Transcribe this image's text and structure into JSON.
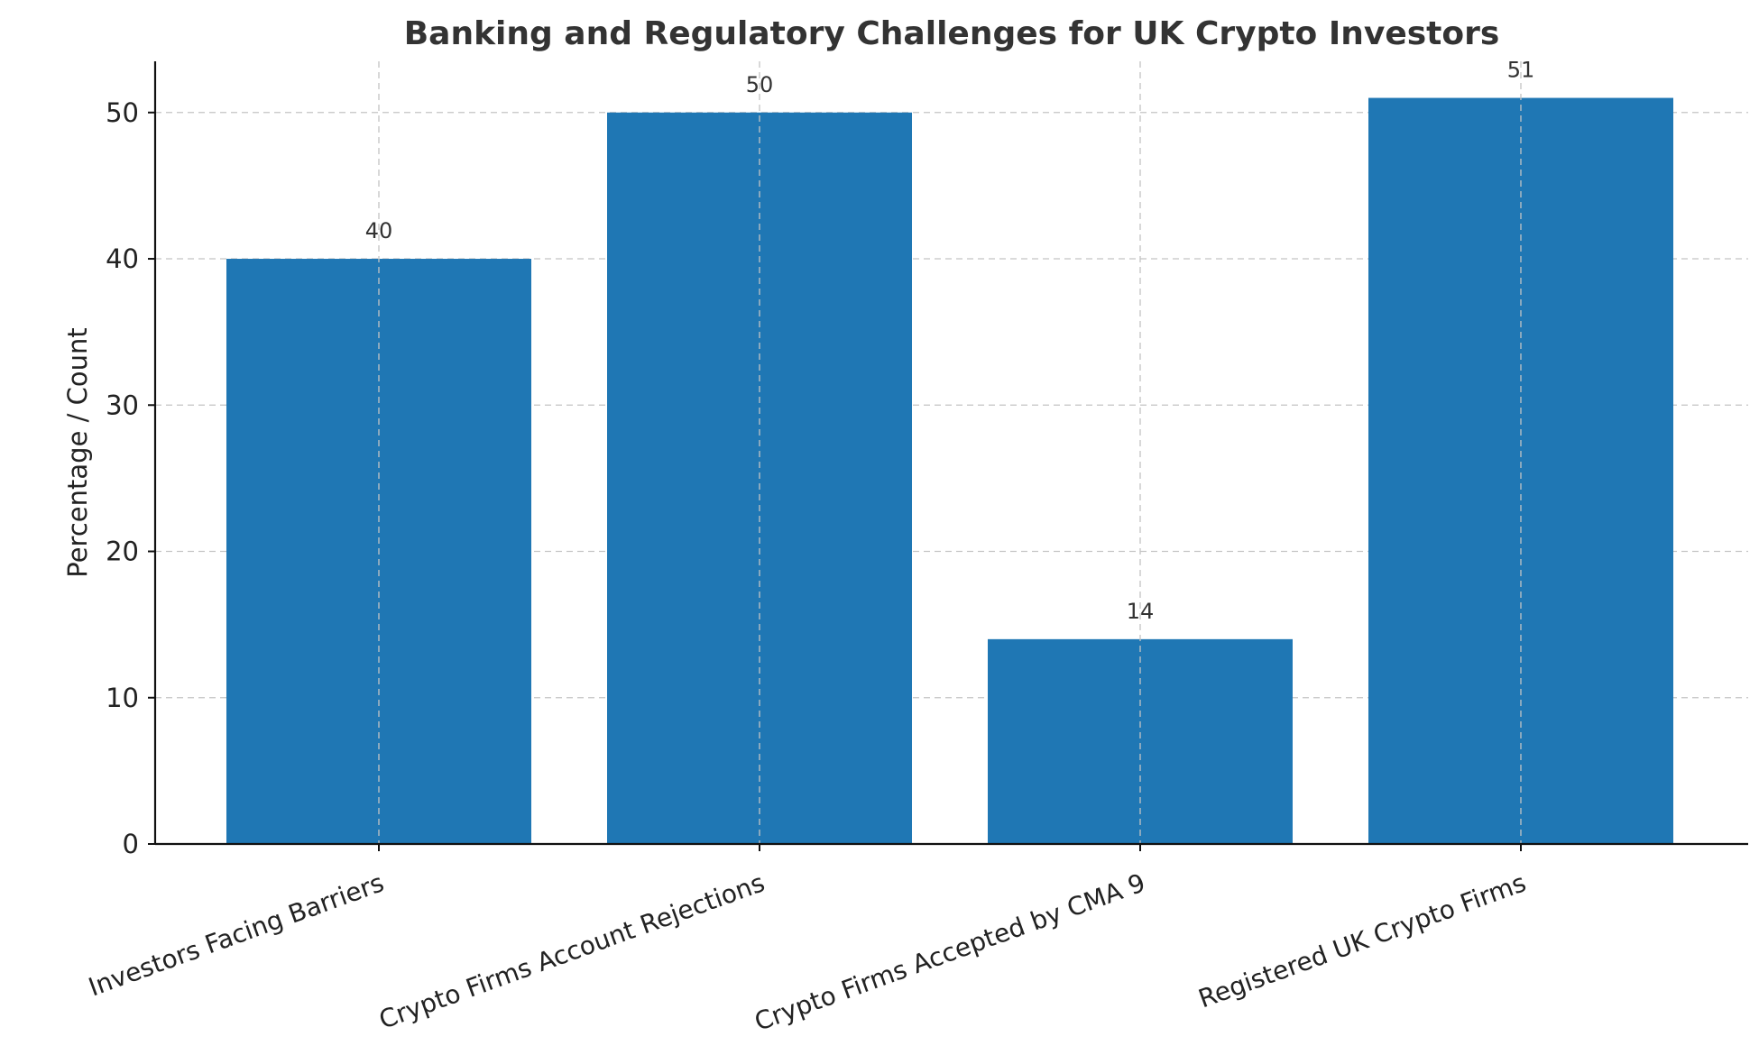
{
  "chart_data": {
    "type": "bar",
    "title": "Banking and Regulatory Challenges for UK Crypto Investors",
    "xlabel": "",
    "ylabel": "Percentage / Count",
    "categories": [
      "Investors Facing Barriers",
      "Crypto Firms Account Rejections",
      "Crypto Firms Accepted by CMA 9",
      "Registered UK Crypto Firms"
    ],
    "values": [
      40,
      50,
      14,
      51
    ],
    "data_labels": [
      "40",
      "50",
      "14",
      "51"
    ],
    "ylim": [
      0,
      53.5
    ],
    "yticks": [
      0,
      10,
      20,
      30,
      40,
      50
    ],
    "grid": true,
    "bar_color": "#1f77b4"
  }
}
